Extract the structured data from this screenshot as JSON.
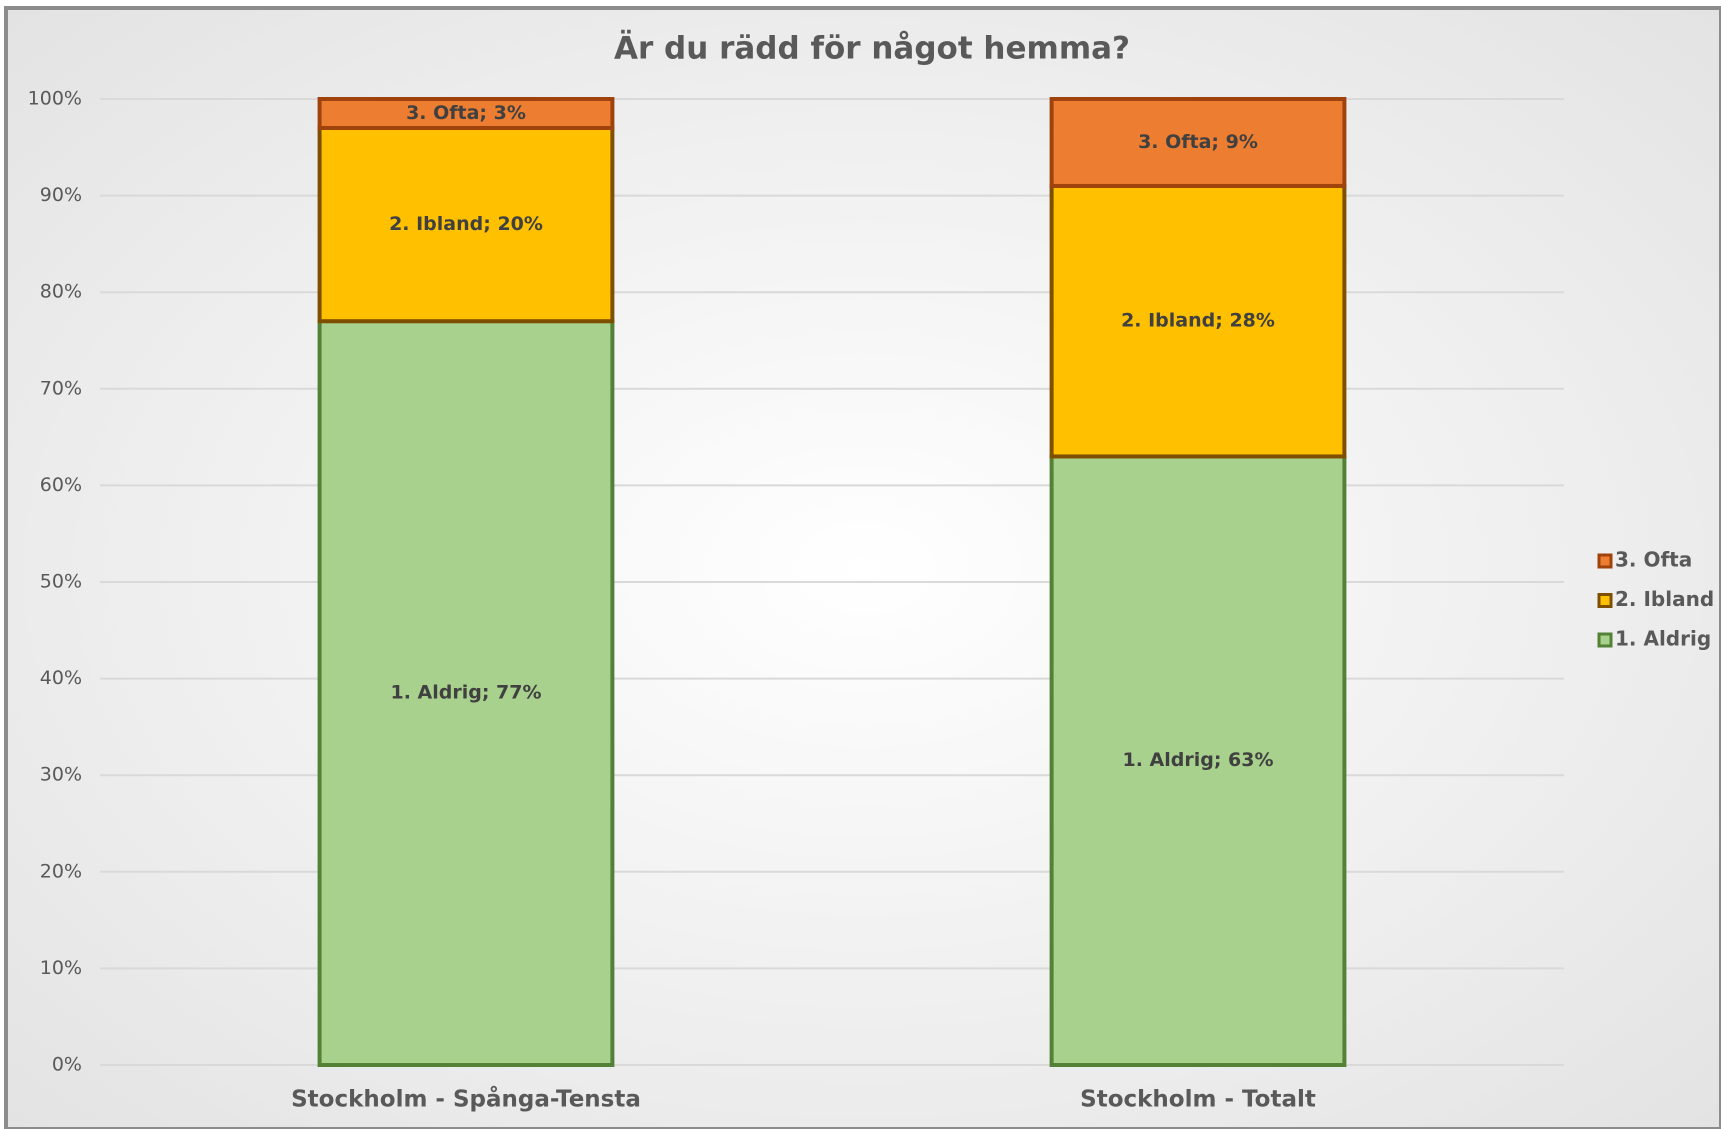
{
  "chart_data": {
    "type": "stacked_bar",
    "title": "Är du rädd för något hemma?",
    "categories": [
      "Stockholm - Spånga-Tensta",
      "Stockholm - Totalt"
    ],
    "series": [
      {
        "name": "1. Aldrig",
        "color": "#a9d18e",
        "border": "#538135",
        "values": [
          77,
          63
        ],
        "value_labels": [
          "1. Aldrig; 77%",
          "1. Aldrig; 63%"
        ]
      },
      {
        "name": "2. Ibland",
        "color": "#ffc000",
        "border": "#7f4f00",
        "values": [
          20,
          28
        ],
        "value_labels": [
          "2. Ibland; 20%",
          "2. Ibland; 28%"
        ]
      },
      {
        "name": "3. Ofta",
        "color": "#ed7d31",
        "border": "#a0420c",
        "values": [
          3,
          9
        ],
        "value_labels": [
          "3. Ofta; 3%",
          "3. Ofta; 9%"
        ]
      }
    ],
    "ylim": [
      0,
      100
    ],
    "yticks": [
      {
        "value": 0,
        "label": "0%"
      },
      {
        "value": 10,
        "label": "10%"
      },
      {
        "value": 20,
        "label": "20%"
      },
      {
        "value": 30,
        "label": "30%"
      },
      {
        "value": 40,
        "label": "40%"
      },
      {
        "value": 50,
        "label": "50%"
      },
      {
        "value": 60,
        "label": "60%"
      },
      {
        "value": 70,
        "label": "70%"
      },
      {
        "value": 80,
        "label": "80%"
      },
      {
        "value": 90,
        "label": "90%"
      },
      {
        "value": 100,
        "label": "100%"
      }
    ],
    "grid": true,
    "legend": "right"
  }
}
